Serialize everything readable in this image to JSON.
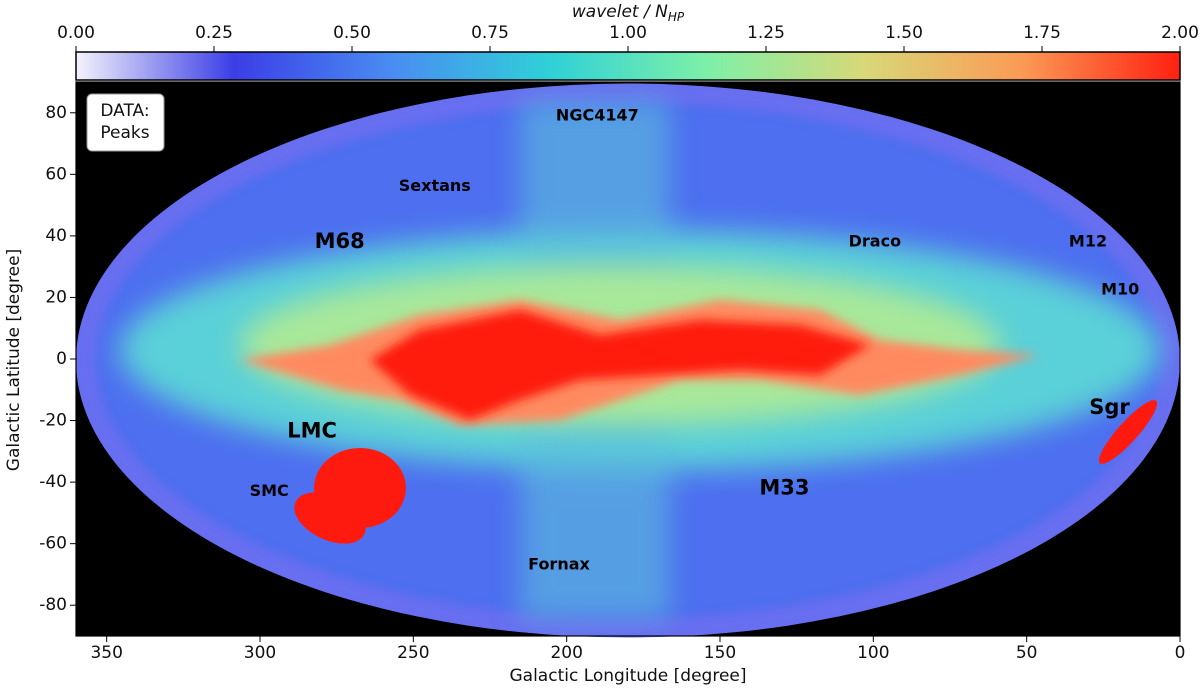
{
  "chart_data": {
    "type": "skymap",
    "xlabel": "Galactic Longitude [degree]",
    "ylabel": "Galactic Latitude [degree]",
    "xlim": [
      360,
      0
    ],
    "xticks": [
      350,
      300,
      250,
      200,
      150,
      100,
      50,
      0
    ],
    "ylim": [
      -90,
      90
    ],
    "yticks": [
      -80,
      -60,
      -40,
      -20,
      0,
      20,
      40,
      60,
      80
    ],
    "colorbar": {
      "label": "wavelet / N",
      "label_subscript": "HP",
      "lim": [
        0,
        2
      ],
      "ticks": [
        {
          "value": 0,
          "label": "0.00"
        },
        {
          "value": 0.25,
          "label": "0.25"
        },
        {
          "value": 0.5,
          "label": "0.50"
        },
        {
          "value": 0.75,
          "label": "0.75"
        },
        {
          "value": 1,
          "label": "1.00"
        },
        {
          "value": 1.25,
          "label": "1.25"
        },
        {
          "value": 1.5,
          "label": "1.50"
        },
        {
          "value": 1.75,
          "label": "1.75"
        },
        {
          "value": 2,
          "label": "2.00"
        }
      ],
      "colormap": [
        "#f4f2fb",
        "#3b3ee6",
        "#4a8cf2",
        "#2fd0d8",
        "#7df0a8",
        "#d8d878",
        "#fb9a55",
        "#ff2010"
      ]
    },
    "legend_text": [
      "DATA:",
      "Peaks"
    ],
    "annotations": [
      {
        "text": "NGC4147",
        "x": 190,
        "y": 79
      },
      {
        "text": "Sextans",
        "x": 243,
        "y": 56
      },
      {
        "text": "M68",
        "x": 274,
        "y": 38
      },
      {
        "text": "Draco",
        "x": 99.5,
        "y": 38
      },
      {
        "text": "M12",
        "x": 30,
        "y": 38
      },
      {
        "text": "M10",
        "x": 19.5,
        "y": 22.5
      },
      {
        "text": "LMC",
        "x": 283,
        "y": -23.5
      },
      {
        "text": "Sgr",
        "x": 23,
        "y": -16
      },
      {
        "text": "SMC",
        "x": 297,
        "y": -43
      },
      {
        "text": "M33",
        "x": 129,
        "y": -42
      },
      {
        "text": "Fornax",
        "x": 202.5,
        "y": -67
      }
    ]
  }
}
